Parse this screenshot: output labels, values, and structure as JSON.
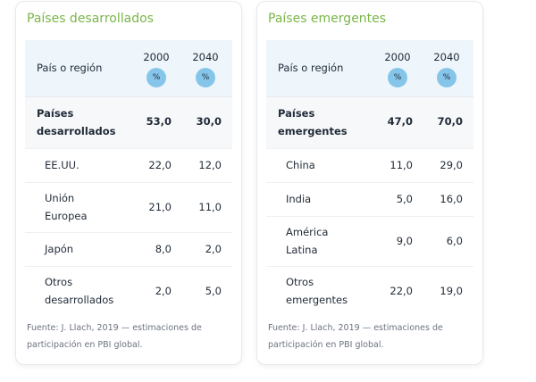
{
  "developed": {
    "title": "Países desarrollados",
    "header": {
      "label": "País o región",
      "year1": "2000",
      "year2": "2040",
      "unit": "%"
    },
    "total": {
      "name_line1": "Países",
      "name_line2": "desarrollados",
      "v2000": "53,0",
      "v2040": "30,0"
    },
    "rows": [
      {
        "line1": "EE.UU.",
        "line2": "",
        "v2000": "22,0",
        "v2040": "12,0"
      },
      {
        "line1": "Unión",
        "line2": "Europea",
        "v2000": "21,0",
        "v2040": "11,0"
      },
      {
        "line1": "Japón",
        "line2": "",
        "v2000": "8,0",
        "v2040": "2,0"
      },
      {
        "line1": "Otros",
        "line2": "desarrollados",
        "v2000": "2,0",
        "v2040": "5,0"
      }
    ],
    "source_line1": "Fuente: J. Llach, 2019 — estimaciones de",
    "source_line2": "participación en PBI global."
  },
  "emerging": {
    "title": "Países emergentes",
    "header": {
      "label": "País o región",
      "year1": "2000",
      "year2": "2040",
      "unit": "%"
    },
    "total": {
      "name_line1": "Países",
      "name_line2": "emergentes",
      "v2000": "47,0",
      "v2040": "70,0"
    },
    "rows": [
      {
        "line1": "China",
        "line2": "",
        "v2000": "11,0",
        "v2040": "29,0"
      },
      {
        "line1": "India",
        "line2": "",
        "v2000": "5,0",
        "v2040": "16,0"
      },
      {
        "line1": "América",
        "line2": "Latina",
        "v2000": "9,0",
        "v2040": "6,0"
      },
      {
        "line1": "Otros",
        "line2": "emergentes",
        "v2000": "22,0",
        "v2040": "19,0"
      }
    ],
    "source_line1": "Fuente: J. Llach, 2019 — estimaciones de",
    "source_line2": "participación en PBI global."
  },
  "colors": {
    "title_green": "#7ab648",
    "header_bg": "#eef6fb",
    "badge_blue": "#86c5ea",
    "source_gray": "#6b7280"
  }
}
